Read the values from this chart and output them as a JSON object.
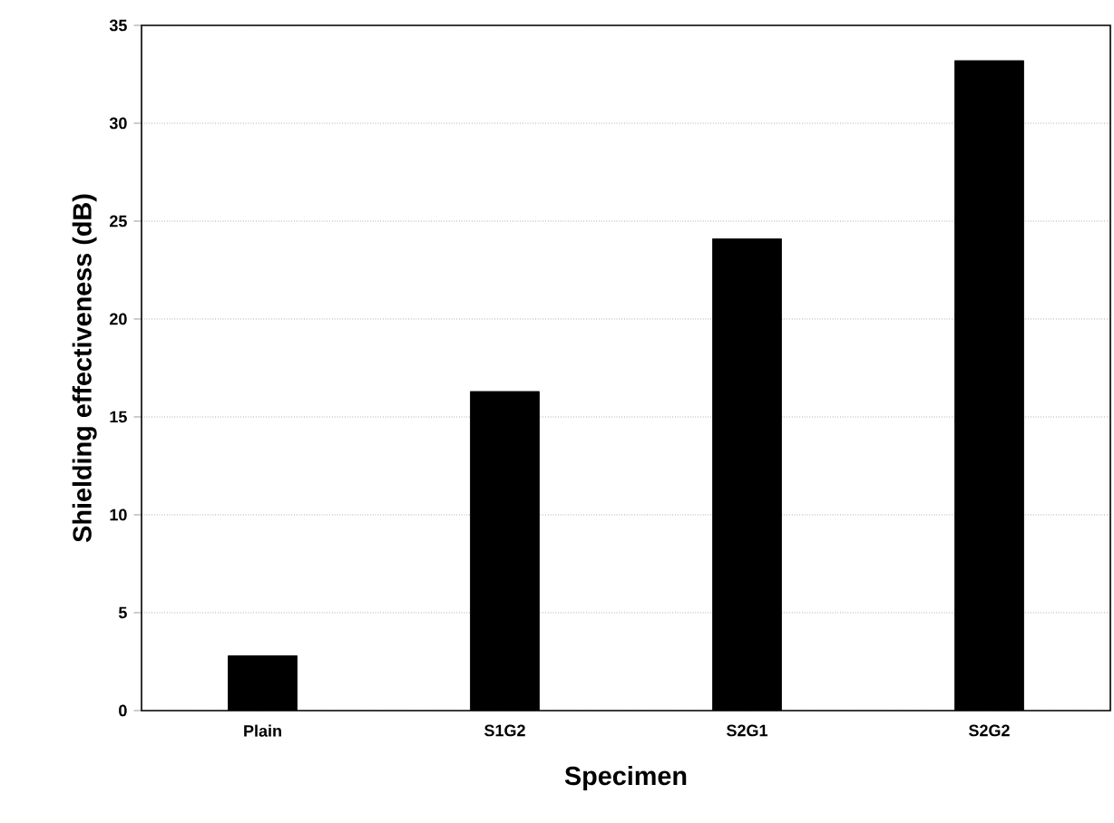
{
  "chart_data": {
    "type": "bar",
    "xlabel": "Specimen",
    "ylabel": "Shielding effectiveness (dB)",
    "categories": [
      "Plain",
      "S1G2",
      "S2G1",
      "S2G2"
    ],
    "values": [
      2.8,
      16.3,
      24.1,
      33.2
    ],
    "color": "#000000",
    "ylim": [
      0,
      35
    ],
    "yticks": [
      0,
      5,
      10,
      15,
      20,
      25,
      30,
      35
    ],
    "grid": "y"
  }
}
